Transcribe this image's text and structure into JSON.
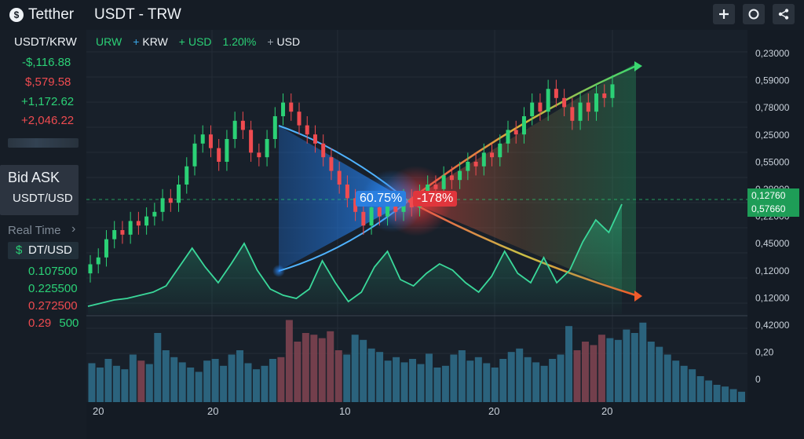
{
  "header": {
    "app_name": "Tetther",
    "logo_glyph": "$",
    "pair": "USDT - TRW",
    "buttons": [
      "add-button",
      "circle-button",
      "share-button"
    ]
  },
  "sidebar": {
    "pair": "USDT/KRW",
    "changes": [
      {
        "text": "-$,116.88",
        "color": "#2bd176"
      },
      {
        "text": "$,579.58",
        "color": "#ef4b50"
      },
      {
        "text": "+1,172.62",
        "color": "#2bd176"
      },
      {
        "text": "+2,046.22",
        "color": "#ef4b50"
      }
    ],
    "bid_ask_title": "Bid ASK",
    "bid_ask_pair": "USDT/USD",
    "real_time": "Real Time",
    "chevron": "›",
    "dt_label": "DT/USD",
    "dt_icon": "$",
    "rates": [
      {
        "text": "0.107500",
        "color": "#2bd176"
      },
      {
        "text": "0.225500",
        "color": "#2bd176"
      },
      {
        "text": "0.272500",
        "color": "#ef4b50"
      }
    ],
    "last_rate": {
      "a": "0.29",
      "b": "500"
    }
  },
  "chart_data": {
    "type": "candlestick",
    "legend": [
      {
        "marker": "",
        "label": "URW",
        "color": "#2bd176"
      },
      {
        "marker": "+",
        "label": "KRW",
        "color": "#3aa7e8"
      },
      {
        "marker": "+",
        "label": "USD",
        "color": "#2bd176"
      },
      {
        "marker": "",
        "label": "1.20l%",
        "color": "#2bd176"
      },
      {
        "marker": "+",
        "label": "USD",
        "color": "#9aa3ad"
      }
    ],
    "y_axis_labels": [
      "0,23000",
      "0,59000",
      "0,78000",
      "0,25000",
      "0,55000",
      "0,29000",
      "0,22000",
      "0,45000",
      "0,12000",
      "0,12000",
      "0,42000",
      "0,20",
      "0"
    ],
    "price_tags": [
      {
        "text": "0,12760",
        "color": "#1e9d57"
      },
      {
        "text": "0,57660",
        "color": "#1e9d57"
      }
    ],
    "x_axis_labels": [
      "20",
      "20",
      "10",
      "20",
      "20"
    ],
    "annotations": [
      {
        "text": "60.75%",
        "color": "#2a7fe0"
      },
      {
        "text": "-178%",
        "color": "#e0353c"
      }
    ],
    "candle_closes": [
      0.15,
      0.18,
      0.26,
      0.3,
      0.28,
      0.34,
      0.32,
      0.36,
      0.38,
      0.44,
      0.42,
      0.5,
      0.58,
      0.68,
      0.72,
      0.66,
      0.6,
      0.7,
      0.78,
      0.74,
      0.64,
      0.62,
      0.7,
      0.8,
      0.86,
      0.82,
      0.76,
      0.72,
      0.68,
      0.62,
      0.56,
      0.5,
      0.44,
      0.38,
      0.32,
      0.4,
      0.36,
      0.42,
      0.38,
      0.44,
      0.4,
      0.46,
      0.5,
      0.48,
      0.54,
      0.52,
      0.56,
      0.6,
      0.58,
      0.64,
      0.62,
      0.68,
      0.74,
      0.72,
      0.8,
      0.86,
      0.82,
      0.92,
      0.88,
      0.84,
      0.78,
      0.86,
      0.82,
      0.9,
      0.88,
      0.94
    ],
    "line_series": [
      0.05,
      0.07,
      0.09,
      0.1,
      0.12,
      0.14,
      0.18,
      0.3,
      0.42,
      0.3,
      0.2,
      0.32,
      0.45,
      0.28,
      0.16,
      0.12,
      0.1,
      0.16,
      0.34,
      0.2,
      0.08,
      0.14,
      0.3,
      0.4,
      0.22,
      0.18,
      0.26,
      0.32,
      0.28,
      0.2,
      0.14,
      0.24,
      0.4,
      0.26,
      0.2,
      0.36,
      0.2,
      0.28,
      0.46,
      0.6,
      0.52,
      0.7
    ],
    "volume": [
      0.45,
      0.4,
      0.5,
      0.42,
      0.38,
      0.55,
      0.48,
      0.44,
      0.8,
      0.6,
      0.52,
      0.46,
      0.4,
      0.35,
      0.48,
      0.5,
      0.42,
      0.55,
      0.6,
      0.45,
      0.38,
      0.42,
      0.5,
      0.52,
      0.95,
      0.7,
      0.8,
      0.78,
      0.74,
      0.82,
      0.6,
      0.55,
      0.78,
      0.72,
      0.62,
      0.58,
      0.48,
      0.52,
      0.46,
      0.5,
      0.44,
      0.56,
      0.4,
      0.42,
      0.55,
      0.6,
      0.48,
      0.52,
      0.45,
      0.4,
      0.5,
      0.58,
      0.62,
      0.52,
      0.46,
      0.42,
      0.5,
      0.55,
      0.88,
      0.6,
      0.7,
      0.66,
      0.78,
      0.74,
      0.72,
      0.84,
      0.8,
      0.92,
      0.7,
      0.64,
      0.55,
      0.48,
      0.42,
      0.38,
      0.3,
      0.25,
      0.2,
      0.18,
      0.15,
      0.12
    ],
    "volume_up_color": "#2d6a86",
    "volume_down_color": "#7d4350"
  }
}
